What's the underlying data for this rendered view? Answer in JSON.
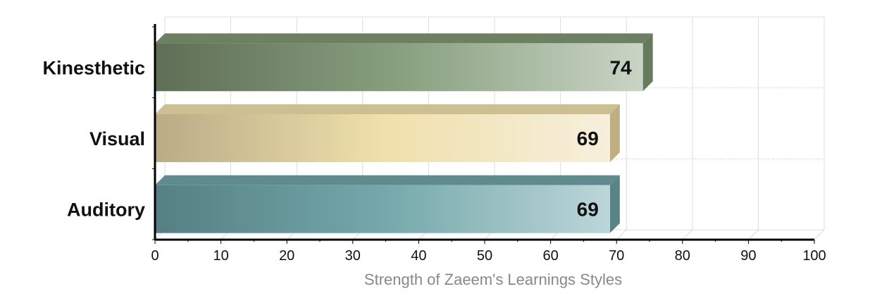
{
  "chart_data": {
    "type": "bar",
    "orientation": "horizontal",
    "categories": [
      "Kinesthetic",
      "Visual",
      "Auditory"
    ],
    "values": [
      74,
      69,
      69
    ],
    "data_labels": [
      "74",
      "69",
      "69"
    ],
    "xlabel": "Strength of Zaeem's Learnings Styles",
    "ylabel": "",
    "xlim": [
      0,
      100
    ],
    "xticks": [
      "0",
      "10",
      "20",
      "30",
      "40",
      "50",
      "60",
      "70",
      "80",
      "90",
      "100"
    ],
    "grid": true,
    "style": "3d",
    "colors": {
      "Kinesthetic": {
        "dark": "#5f6e56",
        "mid": "#88a07f",
        "light": "#c9d4c5",
        "top": "#6e8062",
        "side": "#667a5c"
      },
      "Visual": {
        "dark": "#b9ac86",
        "mid": "#efe0ab",
        "light": "#f7efdc",
        "top": "#cdbf92",
        "side": "#bfae82"
      },
      "Auditory": {
        "dark": "#557f83",
        "mid": "#74a8aa",
        "light": "#bcd6d9",
        "top": "#5f8b8f",
        "side": "#5a8386"
      }
    },
    "axis_title_color": "#888888"
  }
}
